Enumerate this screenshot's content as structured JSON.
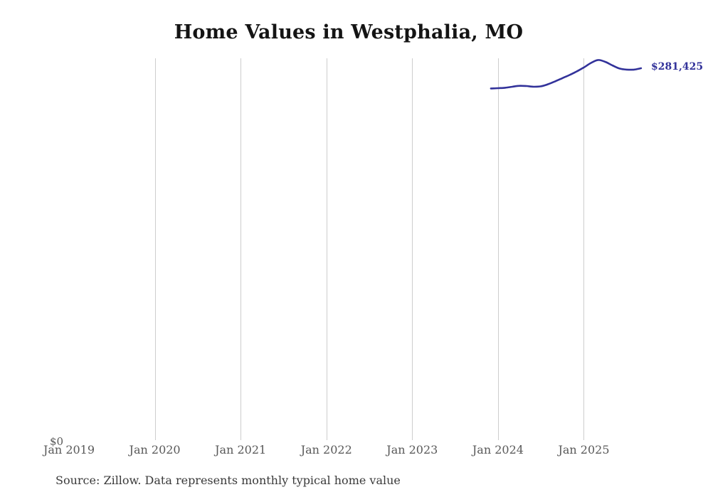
{
  "title": "Home Values in Westphalia, MO",
  "source_note": "Source: Zillow. Data represents monthly typical home value",
  "y_axis": {
    "zero_label": "$0"
  },
  "x_axis": {
    "ticks": [
      "Jan 2019",
      "Jan 2020",
      "Jan 2021",
      "Jan 2022",
      "Jan 2023",
      "Jan 2024",
      "Jan 2025"
    ]
  },
  "end_label": "$281,425",
  "colors": {
    "line": "#32329a",
    "grid": "#cdcdcd",
    "tick_text": "#595959",
    "title_text": "#141414",
    "source_text": "#3a3a3a",
    "end_label_text": "#32329a"
  },
  "chart_data": {
    "type": "line",
    "title": "Home Values in Westphalia, MO",
    "x": [
      "Dec 2023",
      "Jan 2024",
      "Feb 2024",
      "Mar 2024",
      "Apr 2024",
      "May 2024",
      "Jun 2024",
      "Jul 2024",
      "Aug 2024",
      "Sep 2024",
      "Oct 2024",
      "Nov 2024",
      "Dec 2024",
      "Jan 2025",
      "Feb 2025",
      "Mar 2025",
      "Apr 2025",
      "May 2025",
      "Jun 2025",
      "Jul 2025",
      "Aug 2025",
      "Sep 2025"
    ],
    "series": [
      {
        "name": "Typical home value",
        "values": [
          266100,
          266300,
          266600,
          267400,
          268100,
          267900,
          267400,
          267700,
          269300,
          271500,
          273900,
          276300,
          279000,
          282000,
          285500,
          287700,
          286300,
          283600,
          281200,
          280400,
          280400,
          281425
        ]
      }
    ],
    "latest_value_label": "$281,425",
    "xlabel": "",
    "ylabel": "",
    "x_tick_labels": [
      "Jan 2019",
      "Jan 2020",
      "Jan 2021",
      "Jan 2022",
      "Jan 2023",
      "Jan 2024",
      "Jan 2025"
    ],
    "y_tick_labels": [
      "$0"
    ],
    "ylim": [
      0,
      289000
    ],
    "grid": "vertical-only",
    "legend": "none"
  }
}
